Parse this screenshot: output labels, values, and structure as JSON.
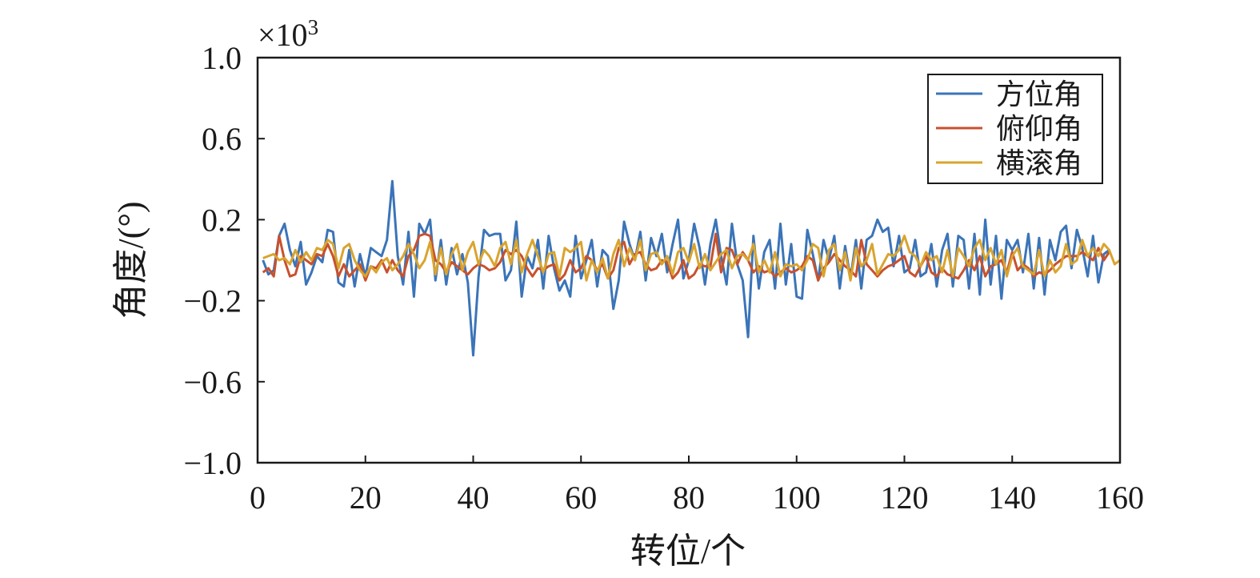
{
  "chart_data": {
    "type": "line",
    "xlabel": "转位/个",
    "ylabel": "角度/(°)",
    "y_scale_note": "×10",
    "y_scale_exponent": "3",
    "xlim": [
      0,
      160
    ],
    "ylim": [
      -1.0,
      1.0
    ],
    "x_ticks": [
      0,
      20,
      40,
      60,
      80,
      100,
      120,
      140,
      160
    ],
    "y_ticks": [
      -1.0,
      -0.6,
      -0.2,
      0.2,
      0.6,
      1.0
    ],
    "y_tick_labels": [
      "−1.0",
      "−0.6",
      "−0.2",
      "0.2",
      "0.6",
      "1.0"
    ],
    "grid": false,
    "legend_position": "top-right",
    "x_start": 1,
    "x_step": 1,
    "series": [
      {
        "name": "方位角",
        "color": "#3b74b8",
        "values": [
          0.0,
          -0.07,
          -0.05,
          0.12,
          0.18,
          0.05,
          -0.03,
          0.09,
          -0.12,
          -0.06,
          0.02,
          -0.01,
          0.15,
          0.14,
          -0.11,
          -0.13,
          0.05,
          -0.13,
          0.03,
          -0.08,
          0.06,
          0.04,
          0.02,
          0.1,
          0.39,
          0.02,
          -0.12,
          0.14,
          -0.18,
          0.18,
          0.13,
          0.2,
          -0.1,
          0.1,
          -0.12,
          0.06,
          -0.07,
          0.03,
          -0.11,
          -0.47,
          -0.08,
          0.15,
          0.12,
          0.13,
          0.13,
          -0.1,
          -0.05,
          0.19,
          -0.18,
          0.02,
          -0.04,
          0.1,
          -0.14,
          0.12,
          -0.04,
          -0.15,
          -0.1,
          -0.18,
          0.12,
          -0.09,
          0.0,
          0.1,
          -0.13,
          0.05,
          0.02,
          -0.24,
          -0.1,
          0.19,
          0.08,
          0.0,
          0.14,
          -0.1,
          0.11,
          0.02,
          0.13,
          -0.06,
          0.08,
          0.2,
          -0.09,
          0.0,
          0.18,
          0.06,
          -0.12,
          0.08,
          0.2,
          0.02,
          -0.12,
          0.18,
          -0.02,
          -0.1,
          -0.38,
          0.12,
          -0.14,
          0.04,
          0.1,
          -0.14,
          0.18,
          -0.12,
          0.08,
          -0.18,
          -0.19,
          0.15,
          0.03,
          -0.1,
          0.1,
          0.0,
          0.12,
          -0.14,
          0.07,
          -0.09,
          0.1,
          -0.14,
          0.1,
          0.12,
          0.2,
          0.14,
          0.16,
          -0.03,
          0.12,
          -0.06,
          -0.04,
          0.1,
          -0.08,
          -0.06,
          0.08,
          -0.13,
          0.05,
          0.13,
          -0.13,
          0.12,
          0.1,
          -0.14,
          0.13,
          -0.17,
          0.2,
          -0.12,
          0.12,
          -0.19,
          0.1,
          0.05,
          0.1,
          -0.06,
          0.13,
          -0.14,
          0.11,
          -0.17,
          0.1,
          0.0,
          0.14,
          0.17,
          -0.04,
          0.15,
          0.06,
          -0.08,
          0.12,
          -0.11,
          0.03,
          0.05
        ]
      },
      {
        "name": "俯仰角",
        "color": "#c8512e",
        "values": [
          -0.06,
          -0.04,
          -0.08,
          0.12,
          0.0,
          -0.08,
          -0.07,
          0.02,
          0.0,
          -0.02,
          0.03,
          0.02,
          0.08,
          0.02,
          -0.08,
          -0.02,
          -0.08,
          -0.05,
          -0.02,
          -0.1,
          -0.03,
          -0.04,
          0.0,
          -0.06,
          0.0,
          -0.05,
          -0.08,
          0.02,
          0.05,
          0.12,
          0.13,
          0.12,
          0.0,
          -0.02,
          -0.06,
          -0.01,
          -0.03,
          -0.05,
          -0.07,
          -0.04,
          -0.02,
          -0.03,
          -0.05,
          -0.04,
          -0.01,
          0.05,
          0.03,
          0.05,
          0.02,
          -0.04,
          -0.08,
          -0.04,
          -0.05,
          -0.03,
          -0.02,
          -0.1,
          -0.07,
          0.0,
          -0.06,
          -0.04,
          0.02,
          0.0,
          -0.05,
          -0.02,
          -0.09,
          -0.05,
          0.06,
          0.09,
          -0.02,
          0.03,
          0.04,
          -0.02,
          -0.05,
          -0.04,
          0.0,
          -0.01,
          -0.09,
          -0.06,
          0.0,
          -0.09,
          -0.07,
          -0.02,
          -0.03,
          -0.03,
          0.13,
          -0.06,
          0.06,
          0.05,
          -0.02,
          0.04,
          0.0,
          -0.06,
          -0.03,
          -0.06,
          -0.05,
          -0.08,
          -0.06,
          -0.04,
          -0.06,
          -0.05,
          -0.03,
          0.02,
          0.0,
          -0.1,
          -0.04,
          -0.01,
          0.03,
          0.0,
          -0.03,
          -0.05,
          -0.08,
          0.1,
          -0.02,
          -0.05,
          -0.08,
          -0.05,
          -0.03,
          -0.02,
          0.0,
          0.02,
          -0.06,
          -0.08,
          -0.03,
          0.02,
          -0.06,
          -0.08,
          -0.04,
          -0.07,
          -0.08,
          -0.09,
          -0.05,
          0.0,
          -0.05,
          0.02,
          -0.08,
          -0.03,
          -0.02,
          0.0,
          -0.06,
          0.04,
          -0.05,
          -0.02,
          -0.04,
          -0.08,
          -0.06,
          -0.07,
          -0.05,
          -0.02,
          0.0,
          0.02,
          0.02,
          0.02,
          0.04,
          0.02,
          0.0,
          0.06,
          0.0,
          0.04
        ]
      },
      {
        "name": "横滚角",
        "color": "#d9a42e",
        "values": [
          0.01,
          0.02,
          0.03,
          0.0,
          0.01,
          -0.02,
          0.05,
          -0.01,
          0.04,
          0.0,
          0.06,
          0.05,
          0.1,
          0.08,
          -0.04,
          0.06,
          0.08,
          0.0,
          -0.05,
          -0.08,
          -0.03,
          -0.06,
          -0.01,
          0.01,
          -0.05,
          -0.02,
          0.02,
          0.08,
          0.03,
          -0.04,
          0.0,
          0.09,
          -0.07,
          0.06,
          -0.07,
          0.03,
          0.08,
          -0.05,
          0.04,
          0.09,
          -0.02,
          0.05,
          0.02,
          -0.03,
          0.06,
          0.09,
          -0.02,
          0.1,
          -0.06,
          0.03,
          0.1,
          0.02,
          -0.06,
          0.03,
          0.04,
          -0.08,
          0.06,
          0.04,
          0.06,
          0.09,
          -0.1,
          0.0,
          -0.06,
          0.01,
          -0.09,
          0.03,
          0.1,
          -0.03,
          0.06,
          0.0,
          0.1,
          -0.05,
          0.03,
          0.04,
          -0.02,
          0.02,
          -0.07,
          0.04,
          0.06,
          -0.01,
          0.08,
          -0.04,
          0.03,
          -0.05,
          -0.01,
          0.03,
          0.05,
          -0.04,
          0.02,
          0.03,
          0.0,
          0.08,
          -0.06,
          0.0,
          -0.06,
          0.04,
          -0.08,
          -0.02,
          -0.03,
          -0.02,
          -0.05,
          0.0,
          0.08,
          0.06,
          -0.08,
          0.05,
          0.08,
          -0.05,
          0.04,
          -0.1,
          0.06,
          -0.03,
          0.0,
          0.08,
          -0.07,
          -0.02,
          0.03,
          0.02,
          0.05,
          0.12,
          0.04,
          0.02,
          -0.03,
          0.04,
          0.0,
          0.02,
          -0.06,
          0.05,
          -0.08,
          0.06,
          0.02,
          -0.03,
          0.06,
          0.1,
          0.0,
          0.06,
          -0.02,
          0.05,
          -0.08,
          0.02,
          0.06,
          -0.03,
          -0.05,
          -0.07,
          0.05,
          -0.08,
          0.0,
          -0.06,
          -0.03,
          0.08,
          -0.02,
          0.0,
          0.1,
          0.02,
          0.06,
          0.02,
          0.08,
          0.05,
          -0.02,
          0.0
        ]
      }
    ]
  }
}
